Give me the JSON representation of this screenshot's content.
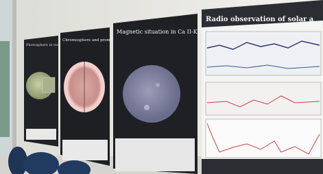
{
  "posters": [
    {
      "title": "Photosphere in visible light"
    },
    {
      "title": "Chromosphere and prominences"
    },
    {
      "title": "Magnetic situation in Ca II-K line"
    },
    {
      "title": "Radio observation of solar a"
    }
  ]
}
